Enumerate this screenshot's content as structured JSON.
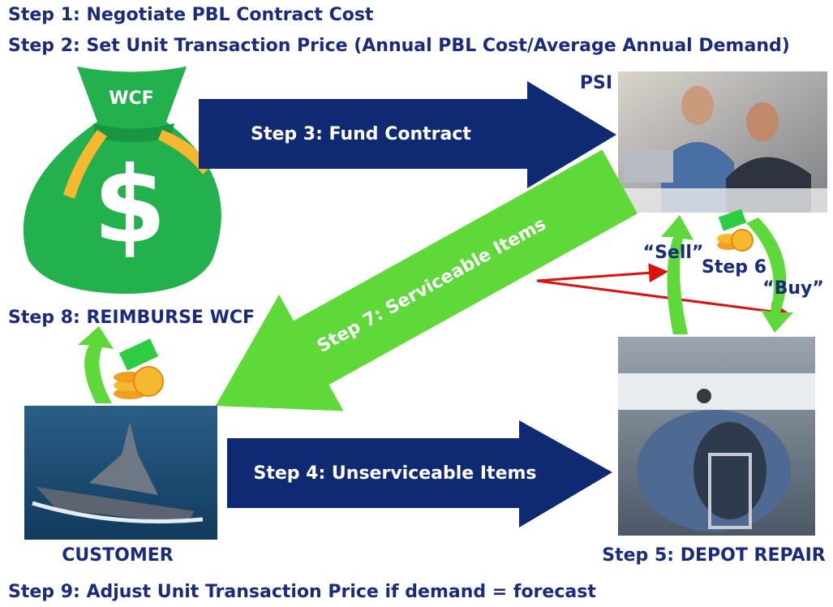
{
  "header": {
    "steps": [
      "Step 1: Negotiate PBL Contract Cost",
      "Step 2: Set Unit Transaction Price (Annual PBL Cost/Average Annual Demand)"
    ]
  },
  "nodes": {
    "wcf": {
      "label": "WCF",
      "symbol": "$"
    },
    "psi": {
      "label": "PSI"
    },
    "customer": {
      "label": "CUSTOMER"
    },
    "depot": {
      "label": "Step 5: DEPOT REPAIR"
    }
  },
  "arrows": {
    "fund": "Step 3: Fund Contract",
    "unserviceable": "Step 4: Unserviceable Items",
    "serviceable": "Step 7: Serviceable Items",
    "sell": "“Sell”",
    "step6": "Step 6",
    "buy": "“Buy”",
    "reimburse": "Step 8: REIMBURSE WCF"
  },
  "footer": "Step 9: Adjust Unit Transaction Price if demand = forecast"
}
